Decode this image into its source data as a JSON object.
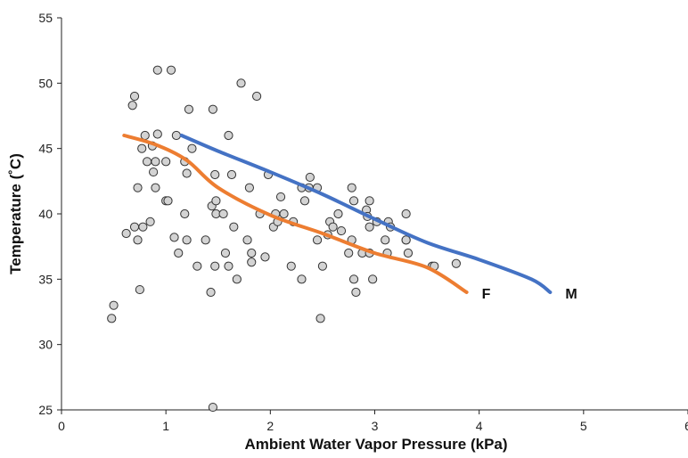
{
  "chart_data": {
    "type": "scatter",
    "title": "",
    "xlabel": "Ambient Water Vapor Pressure (kPa)",
    "ylabel": "Temperature (˚C)",
    "xlim": [
      0,
      6
    ],
    "ylim": [
      25,
      55
    ],
    "x_ticks": [
      "0",
      "1",
      "2",
      "3",
      "4",
      "5",
      "6"
    ],
    "y_ticks": [
      "25",
      "30",
      "35",
      "40",
      "45",
      "50",
      "55"
    ],
    "grid": false,
    "legend": "none",
    "colors": {
      "points_fill": "#d3d3d3",
      "points_stroke": "#333333",
      "M": "#4472c4",
      "F": "#ed7d31"
    },
    "points": [
      [
        0.48,
        32
      ],
      [
        0.5,
        33
      ],
      [
        0.62,
        38.5
      ],
      [
        0.68,
        48.3
      ],
      [
        0.7,
        49
      ],
      [
        0.7,
        39
      ],
      [
        0.73,
        38
      ],
      [
        0.73,
        42
      ],
      [
        0.75,
        34.2
      ],
      [
        0.77,
        45
      ],
      [
        0.78,
        39
      ],
      [
        0.8,
        46
      ],
      [
        0.82,
        44
      ],
      [
        0.85,
        39.4
      ],
      [
        0.87,
        45.2
      ],
      [
        0.88,
        43.2
      ],
      [
        0.9,
        42
      ],
      [
        0.9,
        44
      ],
      [
        0.92,
        46.1
      ],
      [
        0.92,
        51
      ],
      [
        1.0,
        44
      ],
      [
        1.0,
        41
      ],
      [
        1.02,
        41
      ],
      [
        1.05,
        51
      ],
      [
        1.08,
        38.2
      ],
      [
        1.1,
        46
      ],
      [
        1.12,
        37
      ],
      [
        1.18,
        44
      ],
      [
        1.18,
        40
      ],
      [
        1.2,
        38
      ],
      [
        1.2,
        43.1
      ],
      [
        1.22,
        48
      ],
      [
        1.25,
        45
      ],
      [
        1.3,
        36
      ],
      [
        1.38,
        38
      ],
      [
        1.43,
        34
      ],
      [
        1.44,
        40.6
      ],
      [
        1.45,
        48
      ],
      [
        1.45,
        25.2
      ],
      [
        1.47,
        36
      ],
      [
        1.47,
        43
      ],
      [
        1.48,
        41
      ],
      [
        1.48,
        40
      ],
      [
        1.55,
        40
      ],
      [
        1.57,
        37
      ],
      [
        1.6,
        46
      ],
      [
        1.6,
        36
      ],
      [
        1.63,
        43
      ],
      [
        1.65,
        39
      ],
      [
        1.68,
        35
      ],
      [
        1.72,
        50
      ],
      [
        1.78,
        38
      ],
      [
        1.8,
        42
      ],
      [
        1.82,
        37
      ],
      [
        1.82,
        36.3
      ],
      [
        1.87,
        49
      ],
      [
        1.9,
        40
      ],
      [
        1.95,
        36.7
      ],
      [
        1.98,
        43
      ],
      [
        2.03,
        39
      ],
      [
        2.05,
        40
      ],
      [
        2.07,
        39.4
      ],
      [
        2.1,
        41.3
      ],
      [
        2.13,
        40
      ],
      [
        2.2,
        36
      ],
      [
        2.22,
        39.4
      ],
      [
        2.3,
        42
      ],
      [
        2.3,
        35
      ],
      [
        2.33,
        41
      ],
      [
        2.37,
        42
      ],
      [
        2.38,
        42.8
      ],
      [
        2.45,
        42
      ],
      [
        2.45,
        38
      ],
      [
        2.48,
        32
      ],
      [
        2.5,
        36
      ],
      [
        2.55,
        38.4
      ],
      [
        2.57,
        39.4
      ],
      [
        2.6,
        39
      ],
      [
        2.65,
        40
      ],
      [
        2.68,
        38.7
      ],
      [
        2.75,
        37
      ],
      [
        2.78,
        42
      ],
      [
        2.78,
        38
      ],
      [
        2.8,
        41
      ],
      [
        2.8,
        35
      ],
      [
        2.82,
        34
      ],
      [
        2.88,
        37
      ],
      [
        2.92,
        40.3
      ],
      [
        2.93,
        39.8
      ],
      [
        2.95,
        39
      ],
      [
        2.95,
        41
      ],
      [
        2.95,
        37
      ],
      [
        2.98,
        35
      ],
      [
        3.02,
        39.4
      ],
      [
        3.1,
        38
      ],
      [
        3.12,
        37
      ],
      [
        3.13,
        39.4
      ],
      [
        3.15,
        39
      ],
      [
        3.3,
        40
      ],
      [
        3.3,
        38
      ],
      [
        3.3,
        38
      ],
      [
        3.32,
        37
      ],
      [
        3.55,
        36
      ],
      [
        3.57,
        36
      ],
      [
        3.78,
        36.2
      ]
    ],
    "series": [
      {
        "name": "M",
        "x": [
          1.15,
          1.5,
          2.0,
          2.5,
          3.0,
          3.5,
          4.0,
          4.5,
          4.68
        ],
        "y": [
          46,
          44.8,
          43.2,
          41.5,
          39.6,
          37.8,
          36.5,
          35,
          34
        ]
      },
      {
        "name": "F",
        "x": [
          0.6,
          0.9,
          1.2,
          1.5,
          2.0,
          2.5,
          3.0,
          3.5,
          3.88
        ],
        "y": [
          46,
          45.3,
          44.1,
          42,
          39.9,
          38.5,
          37,
          35.9,
          34
        ]
      }
    ]
  }
}
